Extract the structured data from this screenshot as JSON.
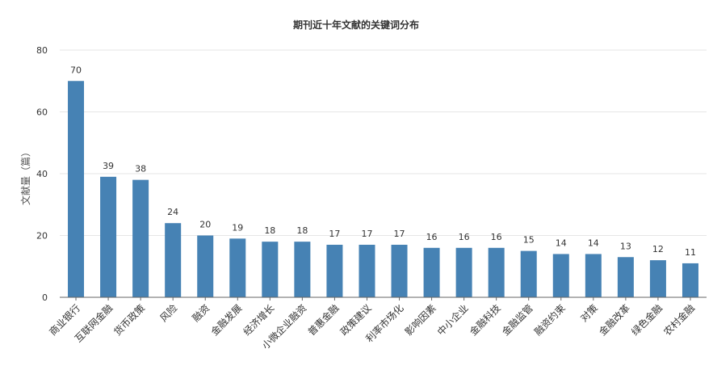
{
  "chart_data": {
    "type": "bar",
    "title": "期刊近十年文献的关键词分布",
    "ylabel": "文献量（篇）",
    "xlabel": "",
    "ylim": [
      0,
      80
    ],
    "yticks": [
      0,
      20,
      40,
      60,
      80
    ],
    "grid": true,
    "bar_color": "#4682b4",
    "categories": [
      "商业银行",
      "互联网金融",
      "货币政策",
      "风险",
      "融资",
      "金融发展",
      "经济增长",
      "小微企业融资",
      "普惠金融",
      "政策建议",
      "利率市场化",
      "影响因素",
      "中小企业",
      "金融科技",
      "金融监管",
      "融资约束",
      "对策",
      "金融改革",
      "绿色金融",
      "农村金融"
    ],
    "values": [
      70,
      39,
      38,
      24,
      20,
      19,
      18,
      18,
      17,
      17,
      17,
      16,
      16,
      16,
      15,
      14,
      14,
      13,
      12,
      11
    ]
  }
}
